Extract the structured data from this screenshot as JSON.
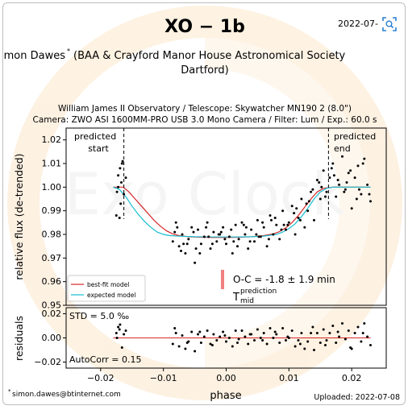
{
  "page": {
    "title": "XO − 1b",
    "date": "2022-07-",
    "observer": "Simon Dawes",
    "observer_mark": "*",
    "affiliation_line1": "(BAA & Crayford Manor House Astronomical Society",
    "affiliation_line2": "Dartford)",
    "observatory_line": "William James II Observatory / Telescope: Skywatcher MN190 2 (8.0\")",
    "camera_line": "Camera: ZWO ASI 1600MM-PRO USB 3.0 Mono Camera / Filter: Lum / Exp.: 60.0 s",
    "email": "simon.dawes@btinternet.com",
    "email_mark": "*",
    "uploaded": "Uploaded: 2022-07-08",
    "watermark": "Exo Clock"
  },
  "chart_data": [
    {
      "type": "scatter",
      "panel": "flux",
      "ylabel": "relative flux (de-trended)",
      "xlim": [
        -0.0255,
        0.0255
      ],
      "ylim": [
        0.95,
        1.025
      ],
      "yticks": [
        0.95,
        0.96,
        0.97,
        0.98,
        0.99,
        1.0,
        1.01,
        1.02
      ],
      "ytick_labels": [
        "0.95",
        "0.96",
        "0.97",
        "0.98",
        "0.99",
        "1.00",
        "1.01",
        "1.02"
      ],
      "predicted_start": {
        "x": -0.0163,
        "label1": "predicted",
        "label2": "start"
      },
      "predicted_end": {
        "x": 0.0163,
        "label1": "predicted",
        "label2": "end"
      },
      "legend": {
        "placement": "lower-left",
        "entries": [
          "best-fit model",
          "expected model"
        ]
      },
      "oc_text": "O-C = -1.8 ± 1.9 min",
      "tmid_main": "T",
      "tmid_sup": "prediction",
      "tmid_sub": "mid",
      "series": [
        {
          "name": "best-fit model",
          "color": "#d62728",
          "x": [
            -0.018,
            -0.0164,
            -0.0155,
            -0.0145,
            -0.0135,
            -0.0125,
            -0.0115,
            -0.0105,
            -0.0095,
            -0.0085,
            -0.0075,
            -0.006,
            -0.004,
            -0.002,
            0.0,
            0.002,
            0.004,
            0.006,
            0.0075,
            0.0085,
            0.0095,
            0.0105,
            0.0115,
            0.0125,
            0.0135,
            0.0145,
            0.0155,
            0.017,
            0.023
          ],
          "y": [
            1.0,
            1.0,
            0.998,
            0.995,
            0.992,
            0.989,
            0.986,
            0.9835,
            0.9815,
            0.9802,
            0.9795,
            0.979,
            0.9788,
            0.9787,
            0.9787,
            0.9788,
            0.979,
            0.9795,
            0.9802,
            0.9812,
            0.9828,
            0.985,
            0.988,
            0.9915,
            0.995,
            0.998,
            0.9995,
            1.0,
            1.0
          ]
        },
        {
          "name": "expected model",
          "color": "#17becf",
          "x": [
            -0.018,
            -0.017,
            -0.016,
            -0.015,
            -0.014,
            -0.013,
            -0.012,
            -0.011,
            -0.01,
            -0.009,
            -0.007,
            -0.005,
            -0.002,
            0.0,
            0.002,
            0.004,
            0.006,
            0.008,
            0.009,
            0.01,
            0.011,
            0.012,
            0.013,
            0.014,
            0.015,
            0.016,
            0.017,
            0.023
          ],
          "y": [
            1.0,
            0.999,
            0.996,
            0.992,
            0.9885,
            0.9855,
            0.983,
            0.981,
            0.98,
            0.9795,
            0.9792,
            0.979,
            0.9789,
            0.9789,
            0.9789,
            0.979,
            0.9793,
            0.98,
            0.981,
            0.9825,
            0.9845,
            0.9875,
            0.991,
            0.995,
            0.998,
            0.9995,
            1.0,
            1.0
          ]
        },
        {
          "name": "data",
          "x": [
            -0.0175,
            -0.0172,
            -0.0169,
            -0.0166,
            -0.0163,
            -0.016,
            -0.0174,
            -0.017,
            -0.0167,
            -0.0165,
            -0.0172,
            -0.0168,
            -0.0085,
            -0.008,
            -0.0075,
            -0.007,
            -0.0065,
            -0.006,
            -0.0055,
            -0.005,
            -0.0045,
            -0.004,
            -0.0035,
            -0.003,
            -0.0025,
            -0.002,
            -0.0015,
            -0.001,
            -0.0005,
            0.0,
            0.0005,
            0.001,
            0.0015,
            0.002,
            0.0025,
            0.003,
            0.0035,
            0.004,
            0.0045,
            0.005,
            0.0055,
            0.006,
            0.0065,
            0.007,
            0.0075,
            0.008,
            0.0085,
            0.009,
            0.0095,
            0.01,
            0.0105,
            0.011,
            0.0115,
            0.012,
            0.0125,
            0.013,
            0.0135,
            0.014,
            0.0145,
            0.015,
            0.0155,
            0.016,
            0.0165,
            0.017,
            0.0175,
            0.018,
            0.0185,
            0.019,
            0.0195,
            0.02,
            0.0205,
            0.021,
            0.0215,
            0.022,
            0.0225,
            0.023,
            -0.0082,
            -0.0072,
            -0.0062,
            -0.0052,
            -0.0042,
            -0.0032,
            -0.0022,
            -0.0012,
            -0.0002,
            0.0008,
            0.0018,
            0.0028,
            0.0038,
            0.0048,
            0.0058,
            0.0068,
            0.0078,
            0.0088,
            0.0098,
            0.0108,
            0.0118,
            0.0128,
            0.0138,
            0.0148,
            0.0158,
            0.0168,
            0.0178,
            0.0188,
            0.0198,
            0.0208,
            0.0218,
            0.0228,
            -0.0078,
            -0.0068,
            -0.0048,
            -0.0028,
            -0.0008,
            0.0012,
            0.0032,
            0.0052,
            0.0072,
            0.0092,
            0.0112,
            0.0132,
            0.0152,
            0.0172,
            0.0192,
            0.0212
          ],
          "y": [
            0.988,
            1.0,
            1.008,
            1.01,
            0.997,
            1.004,
            0.998,
            0.987,
            1.002,
            1.011,
            1.005,
            0.993,
            0.977,
            0.985,
            0.975,
            0.98,
            0.972,
            0.978,
            0.983,
            0.968,
            0.982,
            0.976,
            0.979,
            0.985,
            0.974,
            0.981,
            0.977,
            0.98,
            0.983,
            0.976,
            0.979,
            0.972,
            0.984,
            0.978,
            0.985,
            0.98,
            0.974,
            0.982,
            0.977,
            0.986,
            0.979,
            0.983,
            0.975,
            0.988,
            0.98,
            0.984,
            0.978,
            0.99,
            0.982,
            0.985,
            0.992,
            0.98,
            0.987,
            0.995,
            0.983,
            0.99,
            0.998,
            0.986,
            1.003,
            0.995,
            1.007,
            0.998,
            1.004,
            1.01,
            0.996,
            1.001,
            1.013,
            0.999,
            1.006,
            0.991,
            1.004,
            1.009,
            0.997,
            1.012,
            1.001,
            0.994,
            0.981,
            0.973,
            0.976,
            0.981,
            0.972,
            0.983,
            0.976,
            0.98,
            0.978,
            0.982,
            0.975,
            0.984,
            0.977,
            0.98,
            0.985,
            0.978,
            0.987,
            0.982,
            0.984,
            0.989,
            0.986,
            0.993,
            0.999,
            1.002,
            0.996,
            1.008,
            1.003,
            0.998,
            1.007,
            0.995,
            1.01,
            0.997,
            0.983,
            0.976,
            0.974,
            0.979,
            0.981,
            0.977,
            0.983,
            0.979,
            0.986,
            0.984,
            0.991,
            0.994,
            1.0,
            1.005,
            1.002,
            0.999
          ]
        }
      ]
    },
    {
      "type": "scatter",
      "panel": "residuals",
      "xlabel": "phase",
      "ylabel": "residuals",
      "xlim": [
        -0.0255,
        0.0255
      ],
      "ylim": [
        -0.025,
        0.025
      ],
      "xticks": [
        -0.02,
        -0.01,
        0.0,
        0.01,
        0.02
      ],
      "xtick_labels": [
        "−0.02",
        "−0.01",
        "0.00",
        "0.01",
        "0.02"
      ],
      "yticks": [
        -0.02,
        0.0,
        0.02
      ],
      "ytick_labels": [
        "−0.02",
        "0.00",
        "0.02"
      ],
      "std_text": "STD = 5.0 ‰",
      "autocorr_text": "AutoCorr = 0.15",
      "zero_line_color": "#d62728",
      "series": [
        {
          "name": "residuals",
          "x": [
            -0.0175,
            -0.0172,
            -0.0169,
            -0.0166,
            -0.0163,
            -0.016,
            -0.0174,
            -0.017,
            -0.0085,
            -0.008,
            -0.0075,
            -0.007,
            -0.0065,
            -0.006,
            -0.0055,
            -0.005,
            -0.0045,
            -0.004,
            -0.0035,
            -0.003,
            -0.0025,
            -0.002,
            -0.0015,
            -0.001,
            -0.0005,
            0.0,
            0.0005,
            0.001,
            0.0015,
            0.002,
            0.0025,
            0.003,
            0.0035,
            0.004,
            0.0045,
            0.005,
            0.0055,
            0.006,
            0.0065,
            0.007,
            0.0075,
            0.008,
            0.0085,
            0.009,
            0.0095,
            0.01,
            0.0105,
            0.011,
            0.0115,
            0.012,
            0.0125,
            0.013,
            0.0135,
            0.014,
            0.0145,
            0.015,
            0.0155,
            0.016,
            0.0165,
            0.017,
            0.0175,
            0.018,
            0.0185,
            0.019,
            0.0195,
            0.02,
            0.0205,
            0.021,
            0.0215,
            0.022,
            0.0225,
            0.023,
            -0.0082,
            -0.0062,
            -0.0042,
            -0.0022,
            -0.0002,
            0.0018,
            0.0038,
            0.0058,
            0.0078,
            0.0098,
            0.0118,
            0.0138,
            0.0158,
            0.0178,
            0.0198,
            0.0218
          ],
          "y": [
            0.004,
            0.009,
            0.011,
            -0.008,
            0.003,
            0.006,
            0.0,
            0.007,
            -0.005,
            0.004,
            -0.007,
            0.002,
            -0.009,
            -0.003,
            0.005,
            -0.011,
            0.003,
            -0.004,
            0.001,
            0.006,
            -0.005,
            0.003,
            -0.002,
            0.001,
            0.005,
            -0.003,
            0.0,
            -0.007,
            0.006,
            -0.001,
            0.006,
            0.001,
            -0.005,
            0.003,
            -0.002,
            0.007,
            0.0,
            0.004,
            -0.005,
            0.008,
            0.0,
            0.003,
            -0.004,
            0.008,
            -0.002,
            0.0,
            0.006,
            -0.007,
            -0.002,
            0.004,
            -0.009,
            -0.003,
            0.004,
            -0.01,
            0.004,
            -0.004,
            0.007,
            -0.002,
            0.004,
            0.01,
            -0.004,
            0.001,
            0.012,
            -0.001,
            0.006,
            -0.009,
            0.004,
            0.009,
            -0.003,
            0.012,
            0.001,
            -0.006,
            0.008,
            -0.004,
            0.005,
            -0.006,
            0.002,
            -0.004,
            0.003,
            -0.002,
            0.005,
            0.001,
            -0.005,
            0.009,
            -0.006,
            0.005,
            -0.008,
            0.004
          ]
        }
      ]
    }
  ]
}
